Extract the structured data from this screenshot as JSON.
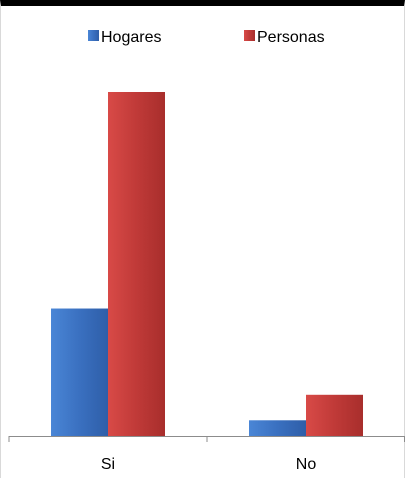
{
  "chart_data": {
    "type": "bar",
    "categories": [
      "Si",
      "No"
    ],
    "series": [
      {
        "name": "Hogares",
        "values": [
          36.5,
          4.5
        ],
        "color": "#3a70c0"
      },
      {
        "name": "Personas",
        "values": [
          98.5,
          11.8
        ],
        "color": "#c03a38"
      }
    ],
    "ylim": [
      0,
      100
    ],
    "grid": false,
    "legend_position": "top"
  }
}
